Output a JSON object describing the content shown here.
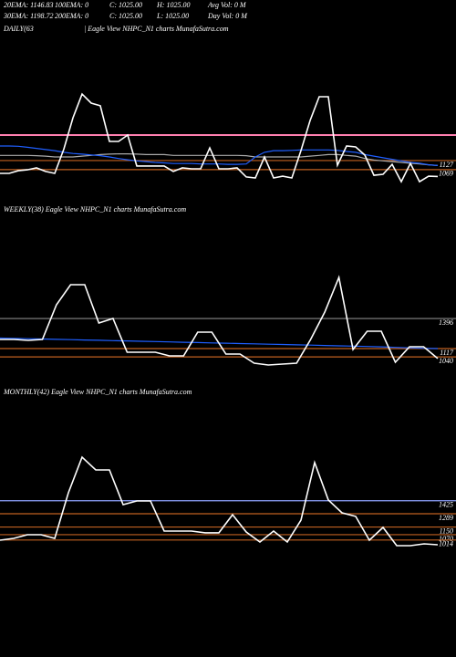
{
  "header": {
    "rows": [
      [
        "20EMA: 1146.83",
        "100EMA: 0",
        "C: 1025.00",
        "H: 1025.00",
        "Avg Vol: 0  M"
      ],
      [
        "30EMA: 1198.72",
        "200EMA: 0",
        "C: 1025.00",
        "L: 1025.00",
        "Day Vol: 0  M"
      ]
    ]
  },
  "chart_data": [
    {
      "type": "line",
      "title": "DAILY(63",
      "subtitle": "| Eagle   View  NHPC_N1 charts MunafaSutra.com",
      "categories": [
        null,
        null,
        null,
        null,
        null,
        null,
        null,
        null,
        null,
        null,
        null,
        null,
        null,
        null,
        null,
        null,
        null,
        null,
        null,
        null,
        null,
        null,
        null,
        null,
        null,
        null,
        null,
        null,
        null,
        null,
        null,
        null,
        null,
        null,
        null,
        null,
        null,
        null,
        null,
        null,
        null,
        null,
        null,
        null,
        null,
        null,
        null,
        null,
        null
      ],
      "series": [
        {
          "color": "#aaaaaa",
          "values": [
            1160,
            1160,
            1160,
            1160,
            1158,
            1155,
            1150,
            1150,
            1150,
            1155,
            1160,
            1165,
            1168,
            1170,
            1170,
            1168,
            1165,
            1165,
            1165,
            1160,
            1160,
            1160,
            1160,
            1160,
            1160,
            1160,
            1160,
            1158,
            1150,
            1150,
            1150,
            1150,
            1150,
            1150,
            1155,
            1160,
            1165,
            1165,
            1160,
            1155,
            1140,
            1130,
            1125,
            1120,
            1115,
            1110,
            1105,
            1100,
            1095
          ]
        },
        {
          "color": "#1f5fff",
          "values": [
            1220,
            1220,
            1218,
            1212,
            1205,
            1197,
            1190,
            1180,
            1172,
            1168,
            1163,
            1158,
            1150,
            1140,
            1132,
            1125,
            1120,
            1115,
            1112,
            1108,
            1108,
            1108,
            1105,
            1105,
            1105,
            1103,
            1103,
            1105,
            1150,
            1180,
            1190,
            1190,
            1192,
            1195,
            1195,
            1195,
            1195,
            1192,
            1185,
            1180,
            1165,
            1155,
            1145,
            1135,
            1125,
            1115,
            1110,
            1100,
            1095
          ]
        },
        {
          "color": "#ffffff",
          "values": [
            1045,
            1045,
            1062,
            1068,
            1080,
            1057,
            1045,
            1200,
            1400,
            1552,
            1494,
            1477,
            1249,
            1249,
            1290,
            1092,
            1092,
            1092,
            1092,
            1057,
            1080,
            1074,
            1074,
            1208,
            1074,
            1074,
            1080,
            1022,
            1016,
            1150,
            1016,
            1027,
            1016,
            1191,
            1383,
            1535,
            1535,
            1097,
            1220,
            1214,
            1162,
            1033,
            1039,
            1103,
            992,
            1109,
            992,
            1027,
            1025
          ]
        }
      ],
      "ylim": [
        870,
        1920
      ],
      "bands": [
        {
          "value": 1290,
          "color": "#ff7fb0"
        }
      ],
      "levels": [
        {
          "value": 1127,
          "color": "#c06020"
        },
        {
          "value": 1069,
          "color": "#c06020"
        }
      ]
    },
    {
      "type": "line",
      "title": "WEEKLY(38) Eagle   View  NHPC_N1 charts MunafaSutra.com",
      "categories": [
        null,
        null,
        null,
        null,
        null,
        null,
        null,
        null,
        null,
        null,
        null,
        null,
        null,
        null,
        null,
        null,
        null,
        null,
        null,
        null,
        null,
        null,
        null,
        null,
        null,
        null,
        null,
        null,
        null,
        null,
        null,
        null
      ],
      "series": [
        {
          "color": "#1f5fff",
          "values": [
            1215,
            1212,
            1209,
            1206,
            1203,
            1200,
            1197,
            1194,
            1191,
            1188,
            1185,
            1182,
            1179,
            1176,
            1173,
            1170,
            1167,
            1164,
            1161,
            1158,
            1155,
            1152,
            1149,
            1146,
            1143,
            1140,
            1137,
            1133,
            1128,
            1124,
            1120,
            1117
          ]
        },
        {
          "color": "#ffffff",
          "values": [
            1202,
            1202,
            1193,
            1202,
            1524,
            1710,
            1710,
            1354,
            1397,
            1083,
            1083,
            1083,
            1049,
            1049,
            1270,
            1270,
            1066,
            1066,
            982,
            965,
            973,
            982,
            1202,
            1456,
            1778,
            1109,
            1278,
            1278,
            990,
            1134,
            1134,
            1025
          ]
        }
      ],
      "ylim": [
        880,
        2320
      ],
      "bands": [],
      "levels": [
        {
          "value": 1396,
          "color": "#888888"
        },
        {
          "value": 1117,
          "color": "#c06020"
        },
        {
          "value": 1040,
          "color": "#c06020"
        }
      ]
    },
    {
      "type": "line",
      "title": "MONTHLY(42) Eagle   View  NHPC_N1 charts MunafaSutra.com",
      "categories": [
        null,
        null,
        null,
        null,
        null,
        null,
        null,
        null,
        null,
        null,
        null,
        null,
        null,
        null,
        null,
        null,
        null,
        null,
        null,
        null,
        null,
        null,
        null,
        null,
        null,
        null,
        null,
        null,
        null,
        null,
        null,
        null,
        null
      ],
      "series": [
        {
          "color": "#ffffff",
          "values": [
            1012,
            1031,
            1069,
            1069,
            1031,
            1509,
            1882,
            1748,
            1748,
            1385,
            1423,
            1423,
            1108,
            1108,
            1108,
            1089,
            1089,
            1280,
            1098,
            993,
            1108,
            993,
            1222,
            1825,
            1433,
            1299,
            1261,
            1012,
            1146,
            955,
            955,
            974,
            964
          ]
        }
      ],
      "ylim": [
        840,
        2560
      ],
      "bands": [],
      "levels": [
        {
          "value": 1425,
          "color": "#8fa3ff"
        },
        {
          "value": 1289,
          "color": "#c06020"
        },
        {
          "value": 1150,
          "color": "#c06020"
        },
        {
          "value": 1070,
          "color": "#c06020"
        },
        {
          "value": 1014,
          "color": "#c06020"
        }
      ]
    }
  ]
}
